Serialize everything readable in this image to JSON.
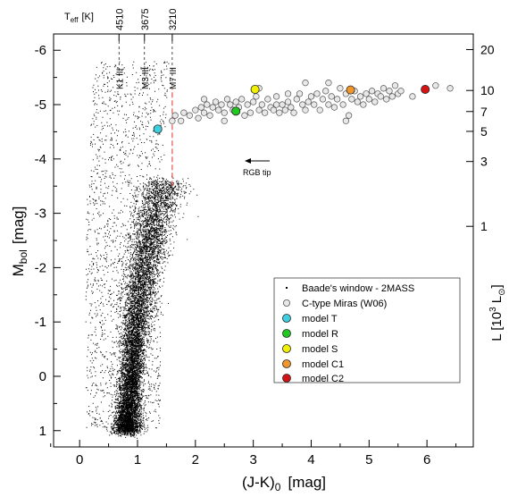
{
  "chart_data": {
    "type": "scatter",
    "xlabel": "(J-K)",
    "xlabel_sub": "0",
    "xlabel_unit": "[mag]",
    "ylabel": "M",
    "ylabel_sub": "bol",
    "ylabel_unit": "[mag]",
    "y2label": "L [10",
    "y2label_sup": "3",
    "y2label_tail": " L",
    "y2label_sub": "⊙",
    "y2label_close": "]",
    "top_axis_label": "T",
    "top_axis_sub": "eff",
    "top_axis_unit": "[K]",
    "xlim": [
      -0.45,
      6.8
    ],
    "ylim": [
      1.3,
      -6.3
    ],
    "y_inverted": true,
    "x_ticks": [
      0,
      1,
      2,
      3,
      4,
      5,
      6
    ],
    "x_tick_labels": [
      "0",
      "1",
      "2",
      "3",
      "4",
      "5",
      "6"
    ],
    "y_ticks": [
      -6,
      -5,
      -4,
      -3,
      -2,
      -1,
      0,
      1
    ],
    "y_tick_labels": [
      "-6",
      "-5",
      "-4",
      "-3",
      "-2",
      "-1",
      "0",
      "1"
    ],
    "luminosity_ticks": [
      {
        "L": 20,
        "label": "20"
      },
      {
        "L": 10,
        "label": "10"
      },
      {
        "L": 7,
        "label": "7"
      },
      {
        "L": 5,
        "label": "5"
      },
      {
        "L": 3,
        "label": "3"
      },
      {
        "L": 1,
        "label": "1"
      }
    ],
    "temperature_ticks": [
      {
        "x": 0.68,
        "label": "4510",
        "spectral": "K1 III"
      },
      {
        "x": 1.12,
        "label": "3675",
        "spectral": "M3 III"
      },
      {
        "x": 1.6,
        "label": "3210",
        "spectral": "M7 III"
      }
    ],
    "annotations": [
      {
        "text": "RGB tip",
        "x": 2.05,
        "y": -3.7,
        "arrow_from": [
          2.25,
          -4.22
        ],
        "arrow_to": [
          1.9,
          -4.22
        ]
      }
    ],
    "rgb_tip_line": {
      "x": 1.6,
      "y_from": -3.5,
      "y_to": -5.3
    },
    "background_series": {
      "name": "Baade's window - 2MASS",
      "description_ridge": [
        {
          "y": 0.9,
          "x": 0.82
        },
        {
          "y": 0.0,
          "x": 0.88
        },
        {
          "y": -1.0,
          "x": 0.97
        },
        {
          "y": -2.0,
          "x": 1.1
        },
        {
          "y": -3.0,
          "x": 1.3
        },
        {
          "y": -3.5,
          "x": 1.45
        }
      ],
      "color": "#000000"
    },
    "series": [
      {
        "name": "C-type Miras (W06)",
        "marker": "circle-open",
        "color": "#c8c8c8",
        "points": [
          [
            1.6,
            -4.7
          ],
          [
            1.65,
            -4.8
          ],
          [
            1.75,
            -4.7
          ],
          [
            1.8,
            -4.85
          ],
          [
            1.9,
            -4.8
          ],
          [
            2.0,
            -4.9
          ],
          [
            2.05,
            -4.75
          ],
          [
            2.1,
            -4.95
          ],
          [
            2.15,
            -4.85
          ],
          [
            2.2,
            -5.0
          ],
          [
            2.25,
            -4.8
          ],
          [
            2.3,
            -4.95
          ],
          [
            2.35,
            -5.05
          ],
          [
            2.4,
            -4.9
          ],
          [
            2.45,
            -5.0
          ],
          [
            2.5,
            -4.85
          ],
          [
            2.55,
            -5.1
          ],
          [
            2.6,
            -5.0
          ],
          [
            2.65,
            -4.9
          ],
          [
            2.7,
            -5.05
          ],
          [
            2.75,
            -4.95
          ],
          [
            2.8,
            -5.1
          ],
          [
            2.85,
            -4.8
          ],
          [
            2.9,
            -5.0
          ],
          [
            2.95,
            -4.85
          ],
          [
            3.0,
            -5.05
          ],
          [
            3.05,
            -5.15
          ],
          [
            3.1,
            -4.9
          ],
          [
            3.15,
            -5.0
          ],
          [
            3.2,
            -4.85
          ],
          [
            3.25,
            -5.1
          ],
          [
            3.3,
            -4.95
          ],
          [
            3.35,
            -4.9
          ],
          [
            3.4,
            -5.0
          ],
          [
            3.45,
            -4.85
          ],
          [
            3.5,
            -5.0
          ],
          [
            3.55,
            -4.9
          ],
          [
            3.6,
            -5.05
          ],
          [
            3.65,
            -4.95
          ],
          [
            3.7,
            -4.85
          ],
          [
            3.75,
            -5.1
          ],
          [
            3.8,
            -5.2
          ],
          [
            3.85,
            -5.0
          ],
          [
            3.9,
            -4.9
          ],
          [
            3.95,
            -5.05
          ],
          [
            4.0,
            -5.15
          ],
          [
            4.05,
            -5.0
          ],
          [
            4.1,
            -5.2
          ],
          [
            4.15,
            -4.9
          ],
          [
            4.2,
            -5.1
          ],
          [
            4.25,
            -5.25
          ],
          [
            4.3,
            -5.0
          ],
          [
            4.35,
            -5.15
          ],
          [
            4.4,
            -4.95
          ],
          [
            4.45,
            -5.1
          ],
          [
            4.5,
            -5.3
          ],
          [
            4.55,
            -5.0
          ],
          [
            4.6,
            -5.2
          ],
          [
            4.65,
            -4.8
          ],
          [
            4.7,
            -5.1
          ],
          [
            4.75,
            -5.25
          ],
          [
            4.8,
            -5.05
          ],
          [
            4.85,
            -5.15
          ],
          [
            4.9,
            -5.0
          ],
          [
            4.95,
            -5.2
          ],
          [
            5.0,
            -5.1
          ],
          [
            5.05,
            -5.25
          ],
          [
            5.1,
            -5.05
          ],
          [
            5.15,
            -5.2
          ],
          [
            5.2,
            -5.15
          ],
          [
            5.25,
            -5.3
          ],
          [
            5.3,
            -5.1
          ],
          [
            5.35,
            -5.25
          ],
          [
            5.4,
            -5.15
          ],
          [
            5.45,
            -5.35
          ],
          [
            5.5,
            -5.2
          ],
          [
            5.55,
            -5.25
          ],
          [
            5.75,
            -5.15
          ],
          [
            6.15,
            -5.35
          ],
          [
            6.4,
            -5.3
          ],
          [
            3.1,
            -5.3
          ],
          [
            3.9,
            -5.4
          ],
          [
            4.3,
            -5.4
          ],
          [
            2.15,
            -5.1
          ],
          [
            2.5,
            -4.7
          ],
          [
            3.6,
            -5.2
          ],
          [
            4.6,
            -4.7
          ],
          [
            3.4,
            -5.15
          ]
        ]
      },
      {
        "name": "model T",
        "marker": "circle-filled",
        "color": "#3fd0e0",
        "points": [
          [
            1.35,
            -4.55
          ]
        ]
      },
      {
        "name": "model R",
        "marker": "circle-filled",
        "color": "#21c821",
        "points": [
          [
            2.7,
            -4.88
          ]
        ]
      },
      {
        "name": "model S",
        "marker": "circle-filled",
        "color": "#f0f000",
        "points": [
          [
            3.03,
            -5.28
          ]
        ]
      },
      {
        "name": "model C1",
        "marker": "circle-filled",
        "color": "#f0962d",
        "points": [
          [
            4.68,
            -5.27
          ]
        ]
      },
      {
        "name": "model C2",
        "marker": "circle-filled",
        "color": "#d21414",
        "points": [
          [
            5.97,
            -5.28
          ]
        ]
      }
    ],
    "legend": {
      "placement": "lower-right",
      "entries": [
        {
          "label": "Baade's window - 2MASS",
          "marker": "dot"
        },
        {
          "label": "C-type Miras (W06)",
          "marker": "circle-open",
          "color": "#c8c8c8"
        },
        {
          "label": "model T",
          "marker": "circle-filled",
          "color": "#3fd0e0"
        },
        {
          "label": "model R",
          "marker": "circle-filled",
          "color": "#21c821"
        },
        {
          "label": "model S",
          "marker": "circle-filled",
          "color": "#f0f000"
        },
        {
          "label": "model C1",
          "marker": "circle-filled",
          "color": "#f0962d"
        },
        {
          "label": "model C2",
          "marker": "circle-filled",
          "color": "#d21414"
        }
      ]
    },
    "grid": false
  }
}
